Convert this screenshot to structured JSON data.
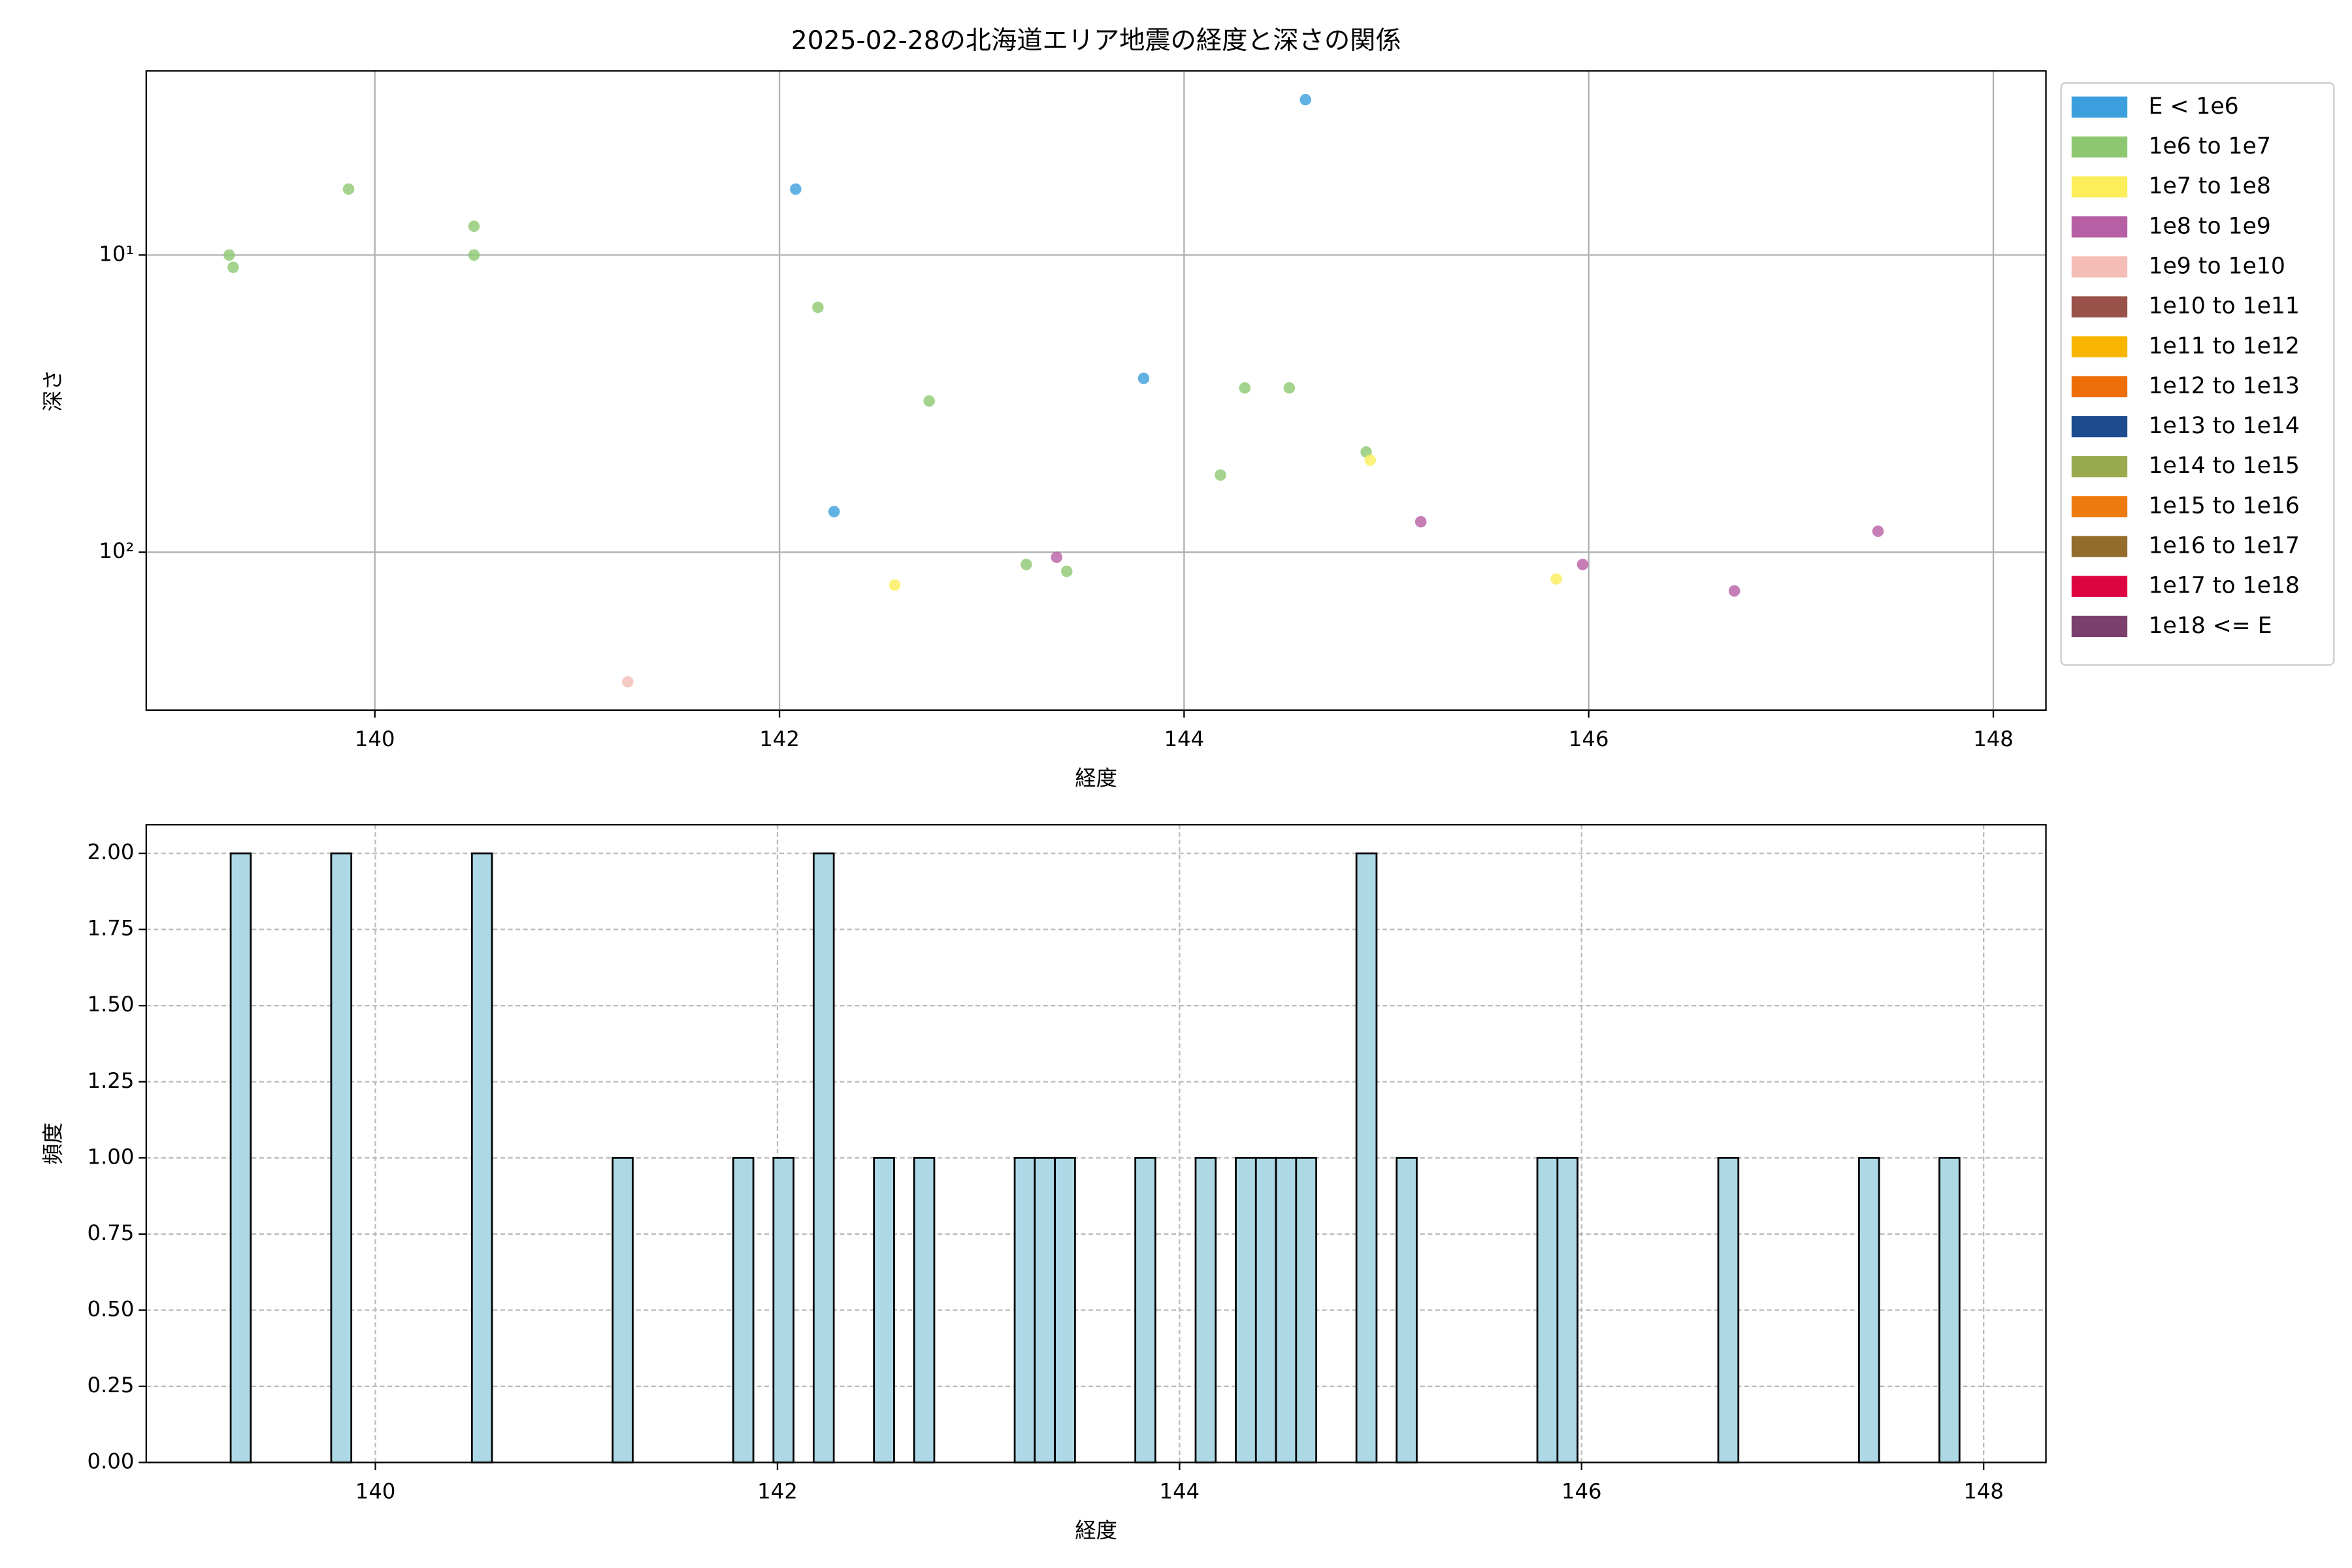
{
  "chart_data": [
    {
      "type": "scatter",
      "title": "2025-02-28の北海道エリア地震の経度と深さの関係",
      "xlabel": "経度",
      "ylabel": "深さ",
      "xlim": [
        138.87,
        148.26
      ],
      "xticks": [
        140,
        142,
        144,
        146,
        148
      ],
      "ylim": [
        2.4,
        340
      ],
      "yscale": "log",
      "invert_y": true,
      "yticks": [
        {
          "value": 10,
          "label": "10¹"
        },
        {
          "value": 100,
          "label": "10²"
        }
      ],
      "grid": true,
      "legend": "outside right",
      "series": [
        {
          "name": "E < 1e6",
          "color": "#3a9fdc",
          "x": [
            142.08,
            144.6,
            143.8,
            142.27
          ],
          "y": [
            6.0,
            3.0,
            26,
            73
          ]
        },
        {
          "name": "1e6 to 1e7",
          "color": "#8dc870",
          "x": [
            139.28,
            139.3,
            139.87,
            140.49,
            140.49,
            142.19,
            142.74,
            144.3,
            144.52,
            144.9,
            144.18,
            143.22,
            143.42
          ],
          "y": [
            10,
            11,
            6.0,
            8.0,
            10,
            15,
            31,
            28,
            28,
            46,
            55,
            110,
            116
          ]
        },
        {
          "name": "1e7 to 1e8",
          "color": "#fbee5a",
          "x": [
            144.92,
            142.57,
            145.84
          ],
          "y": [
            49,
            129,
            123
          ]
        },
        {
          "name": "1e8 to 1e9",
          "color": "#b65fa4",
          "x": [
            145.17,
            147.43,
            143.37,
            145.97,
            146.72
          ],
          "y": [
            79,
            85,
            104,
            110,
            135
          ]
        },
        {
          "name": "1e9 to 1e10",
          "color": "#f4bdb5",
          "x": [
            141.25
          ],
          "y": [
            273
          ]
        },
        {
          "name": "1e10 to 1e11",
          "color": "#985249",
          "x": [],
          "y": []
        },
        {
          "name": "1e11 to 1e12",
          "color": "#f8b500",
          "x": [],
          "y": []
        },
        {
          "name": "1e12 to 1e13",
          "color": "#ed6d08",
          "x": [],
          "y": []
        },
        {
          "name": "1e13 to 1e14",
          "color": "#1d4b8f",
          "x": [],
          "y": []
        },
        {
          "name": "1e14 to 1e15",
          "color": "#9aaa4f",
          "x": [],
          "y": []
        },
        {
          "name": "1e15 to 1e16",
          "color": "#ed7a0e",
          "x": [],
          "y": []
        },
        {
          "name": "1e16 to 1e17",
          "color": "#946c2c",
          "x": [],
          "y": []
        },
        {
          "name": "1e17 to 1e18",
          "color": "#dd0440",
          "x": [],
          "y": []
        },
        {
          "name": "1e18 <= E",
          "color": "#7b3f6e",
          "x": [],
          "y": []
        }
      ]
    },
    {
      "type": "histogram",
      "xlabel": "経度",
      "ylabel": "頻度",
      "color": "#add8e6",
      "edgecolor": "#000000",
      "xlim": [
        138.86,
        148.31
      ],
      "xticks": [
        140,
        142,
        144,
        146,
        148
      ],
      "ylim": [
        0,
        2.094
      ],
      "yticks": [
        {
          "value": 0,
          "label": "0.00"
        },
        {
          "value": 0.25,
          "label": "0.25"
        },
        {
          "value": 0.5,
          "label": "0.50"
        },
        {
          "value": 0.75,
          "label": "0.75"
        },
        {
          "value": 1,
          "label": "1.00"
        },
        {
          "value": 1.25,
          "label": "1.25"
        },
        {
          "value": 1.5,
          "label": "1.50"
        },
        {
          "value": 1.75,
          "label": "1.75"
        },
        {
          "value": 2,
          "label": "2.00"
        }
      ],
      "grid": true,
      "grid_style": "dashed",
      "bins": [
        139.28,
        139.38,
        139.48,
        139.58,
        139.68,
        139.78,
        139.88,
        139.98,
        140.08,
        140.18,
        140.28,
        140.38,
        140.48,
        140.58,
        140.68,
        140.78,
        140.88,
        140.98,
        141.08,
        141.18,
        141.28,
        141.38,
        141.48,
        141.58,
        141.68,
        141.78,
        141.88,
        141.98,
        142.08,
        142.18,
        142.28,
        142.38,
        142.48,
        142.58,
        142.68,
        142.78,
        142.88,
        142.98,
        143.08,
        143.18,
        143.28,
        143.38,
        143.48,
        143.58,
        143.68,
        143.78,
        143.88,
        143.98,
        144.08,
        144.18,
        144.28,
        144.38,
        144.48,
        144.58,
        144.68,
        144.78,
        144.88,
        144.98,
        145.08,
        145.18,
        145.28,
        145.38,
        145.48,
        145.58,
        145.68,
        145.78,
        145.88,
        145.98,
        146.08,
        146.18,
        146.28,
        146.38,
        146.48,
        146.58,
        146.68,
        146.78,
        146.88,
        146.98,
        147.08,
        147.18,
        147.28,
        147.38,
        147.48,
        147.58,
        147.68,
        147.78,
        147.88
      ],
      "counts": [
        2,
        0,
        0,
        0,
        0,
        2,
        0,
        0,
        0,
        0,
        0,
        0,
        2,
        0,
        0,
        0,
        0,
        0,
        0,
        1,
        0,
        0,
        0,
        0,
        0,
        1,
        0,
        1,
        0,
        2,
        0,
        0,
        1,
        0,
        1,
        0,
        0,
        0,
        0,
        1,
        1,
        1,
        0,
        0,
        0,
        1,
        0,
        0,
        1,
        0,
        1,
        1,
        1,
        1,
        0,
        0,
        2,
        0,
        1,
        0,
        0,
        0,
        0,
        0,
        0,
        1,
        1,
        0,
        0,
        0,
        0,
        0,
        0,
        0,
        1,
        0,
        0,
        0,
        0,
        0,
        0,
        1,
        0,
        0,
        0,
        1
      ]
    }
  ]
}
